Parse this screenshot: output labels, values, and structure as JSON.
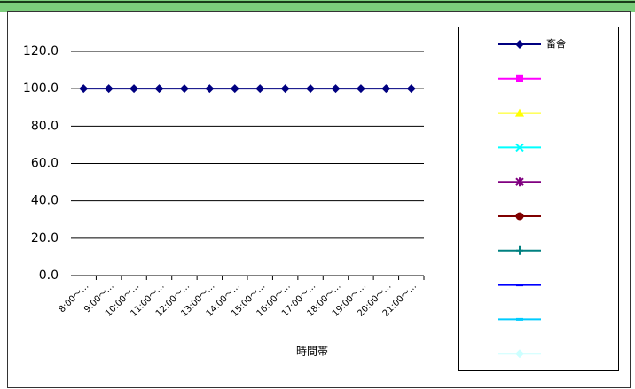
{
  "chart_data": {
    "type": "line",
    "xlabel": "時間帯",
    "categories": [
      "8:00〜…",
      "9:00〜…",
      "10:00〜…",
      "11:00〜…",
      "12:00〜…",
      "13:00〜…",
      "14:00〜…",
      "15:00〜…",
      "16:00〜…",
      "17:00〜…",
      "18:00〜…",
      "19:00〜…",
      "20:00〜…",
      "21:00〜…"
    ],
    "series": [
      {
        "name": "畜舎",
        "color": "#000080",
        "marker": "diamond",
        "values": [
          100,
          100,
          100,
          100,
          100,
          100,
          100,
          100,
          100,
          100,
          100,
          100,
          100,
          100
        ]
      },
      {
        "name": null,
        "color": "#ff00ff",
        "marker": "square",
        "values": [
          null,
          null,
          null,
          null,
          null,
          null,
          null,
          null,
          null,
          null,
          null,
          null,
          null,
          null
        ]
      },
      {
        "name": null,
        "color": "#ffff00",
        "marker": "triangle",
        "values": [
          null,
          null,
          null,
          null,
          null,
          null,
          null,
          null,
          null,
          null,
          null,
          null,
          null,
          null
        ]
      },
      {
        "name": null,
        "color": "#00ffff",
        "marker": "x",
        "values": [
          null,
          null,
          null,
          null,
          null,
          null,
          null,
          null,
          null,
          null,
          null,
          null,
          null,
          null
        ]
      },
      {
        "name": null,
        "color": "#800080",
        "marker": "star",
        "values": [
          null,
          null,
          null,
          null,
          null,
          null,
          null,
          null,
          null,
          null,
          null,
          null,
          null,
          null
        ]
      },
      {
        "name": null,
        "color": "#800000",
        "marker": "circle",
        "values": [
          null,
          null,
          null,
          null,
          null,
          null,
          null,
          null,
          null,
          null,
          null,
          null,
          null,
          null
        ]
      },
      {
        "name": null,
        "color": "#008080",
        "marker": "plus",
        "values": [
          null,
          null,
          null,
          null,
          null,
          null,
          null,
          null,
          null,
          null,
          null,
          null,
          null,
          null
        ]
      },
      {
        "name": null,
        "color": "#0000ff",
        "marker": "dash",
        "values": [
          null,
          null,
          null,
          null,
          null,
          null,
          null,
          null,
          null,
          null,
          null,
          null,
          null,
          null
        ]
      },
      {
        "name": null,
        "color": "#00ccff",
        "marker": "dash",
        "values": [
          null,
          null,
          null,
          null,
          null,
          null,
          null,
          null,
          null,
          null,
          null,
          null,
          null,
          null
        ]
      },
      {
        "name": null,
        "color": "#ccffff",
        "marker": "diamond",
        "values": [
          null,
          null,
          null,
          null,
          null,
          null,
          null,
          null,
          null,
          null,
          null,
          null,
          null,
          null
        ]
      }
    ],
    "ylim": [
      0,
      120
    ],
    "yticks": [
      {
        "value": 0,
        "label": "0.0"
      },
      {
        "value": 20,
        "label": "20.0"
      },
      {
        "value": 40,
        "label": "40.0"
      },
      {
        "value": 60,
        "label": "60.0"
      },
      {
        "value": 80,
        "label": "80.0"
      },
      {
        "value": 100,
        "label": "100.0"
      },
      {
        "value": 120,
        "label": "120.0"
      }
    ],
    "grid": true,
    "legend": "right"
  }
}
